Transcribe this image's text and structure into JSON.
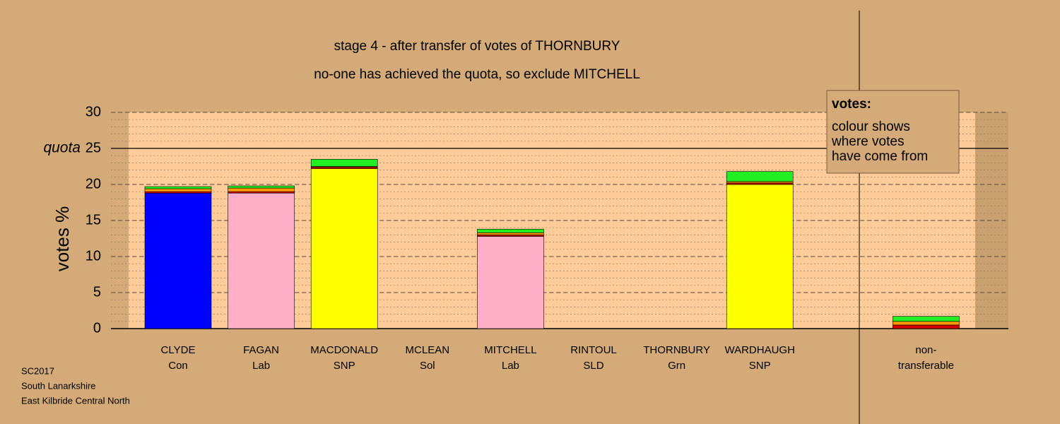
{
  "chart_data": {
    "type": "stacked_bar",
    "title": "stage 4 - after transfer of votes of THORNBURY",
    "subtitle": "no-one has achieved the quota, so exclude MITCHELL",
    "y_label": "votes %",
    "categories": [
      "CLYDE",
      "FAGAN",
      "MACDONALD",
      "MCLEAN",
      "MITCHELL",
      "RINTOUL",
      "THORNBURY",
      "WARDHAUGH",
      null,
      "non-"
    ],
    "category_sublabels": [
      "Con",
      "Lab",
      "SNP",
      "Sol",
      "Lab",
      "SLD",
      "Grn",
      "SNP",
      null,
      "transferable"
    ],
    "series": [
      {
        "color": "#0000ff",
        "values": [
          18.8,
          0,
          0,
          0,
          0,
          0,
          0,
          0,
          0,
          0
        ]
      },
      {
        "color": "#ffb0c8",
        "values": [
          0,
          18.8,
          0,
          0,
          12.8,
          0,
          0,
          0,
          0,
          0
        ]
      },
      {
        "color": "#ffff00",
        "values": [
          0,
          0,
          22.2,
          0,
          0,
          0,
          0,
          20.0,
          0,
          0
        ]
      },
      {
        "color": "#d40000",
        "values": [
          0.2,
          0.2,
          0.2,
          0,
          0.2,
          0,
          0,
          0.2,
          0,
          0.5
        ]
      },
      {
        "color": "#ff9900",
        "values": [
          0.4,
          0.5,
          0.1,
          0,
          0.3,
          0,
          0,
          0.2,
          0,
          0.5
        ]
      },
      {
        "color": "#22ee22",
        "values": [
          0.3,
          0.3,
          1.0,
          0,
          0.5,
          0,
          0,
          1.4,
          0,
          0.7
        ]
      }
    ],
    "ylim": [
      0,
      30
    ],
    "yticks": [
      0,
      5,
      10,
      15,
      20,
      25,
      30
    ],
    "grid": true,
    "quota": 25,
    "quota_label": "quota",
    "note_title": "votes:",
    "note_lines": [
      "colour shows",
      "where votes",
      "have come from"
    ],
    "footer": [
      "SC2017",
      "South Lanarkshire",
      "East Kilbride Central North"
    ]
  }
}
